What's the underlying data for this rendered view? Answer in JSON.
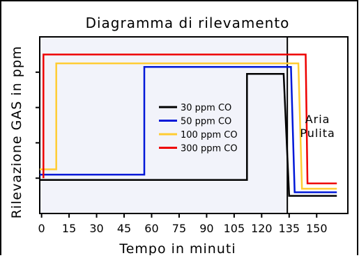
{
  "chart_data": {
    "type": "line",
    "title": "Diagramma di rilevamento",
    "xlabel": "Tempo in minuti",
    "ylabel": "Rilevazione GAS in ppm",
    "x_ticks": [
      "0",
      "15",
      "30",
      "45",
      "60",
      "75",
      "90",
      "105",
      "120",
      "135",
      "150"
    ],
    "x_tick_values": [
      0,
      15,
      30,
      45,
      60,
      75,
      90,
      105,
      120,
      135,
      150
    ],
    "xlim": [
      -1,
      167
    ],
    "ylim": [
      0,
      100
    ],
    "y_ticks_labeled": false,
    "grid": false,
    "legend_position": "center-right",
    "region_label": "Aria Pulita",
    "region_start_x": 134,
    "series": [
      {
        "name": "30 ppm CO",
        "color": "#000000",
        "points": [
          [
            -1,
            19
          ],
          [
            112,
            19
          ],
          [
            112,
            79
          ],
          [
            132,
            79
          ],
          [
            135,
            10
          ],
          [
            161,
            10
          ]
        ]
      },
      {
        "name": "50 ppm CO",
        "color": "#0018d8",
        "points": [
          [
            -1,
            22
          ],
          [
            56,
            22
          ],
          [
            56,
            83
          ],
          [
            136,
            83
          ],
          [
            138,
            12
          ],
          [
            161,
            12
          ]
        ]
      },
      {
        "name": "100 ppm CO",
        "color": "#ffcc33",
        "points": [
          [
            -1,
            25
          ],
          [
            8,
            25
          ],
          [
            8,
            85
          ],
          [
            140,
            85
          ],
          [
            142,
            14
          ],
          [
            161,
            14
          ]
        ]
      },
      {
        "name": "300 ppm CO",
        "color": "#ee0000",
        "points": [
          [
            1,
            20
          ],
          [
            1,
            90
          ],
          [
            144,
            90
          ],
          [
            145,
            17
          ],
          [
            161,
            17
          ]
        ]
      }
    ]
  }
}
